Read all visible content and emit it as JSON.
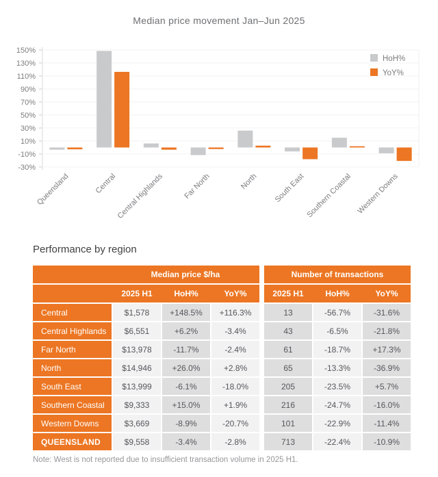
{
  "chart_data": {
    "type": "bar",
    "title": "Median price movement Jan–Jun 2025",
    "categories": [
      "Queensland",
      "Central",
      "Central Highlands",
      "Far North",
      "North",
      "South East",
      "Southern Coastal",
      "Western Downs"
    ],
    "series": [
      {
        "name": "HoH%",
        "color": "#C9CACC",
        "values": [
          -3.4,
          148.5,
          6.2,
          -11.7,
          26.0,
          -6.1,
          15.0,
          -8.9
        ]
      },
      {
        "name": "YoY%",
        "color": "#EC7623",
        "values": [
          -2.8,
          116.3,
          -3.4,
          -2.4,
          2.8,
          -18.0,
          1.9,
          -20.7
        ]
      }
    ],
    "xlabel": "",
    "ylabel": "",
    "ylim": [
      -30,
      150
    ],
    "ytick_step": 20,
    "ytick_suffix": "%",
    "grid": true,
    "legend_position": "top-right"
  },
  "table": {
    "heading": "Performance by region",
    "groups": [
      "Median price $/ha",
      "Number of transactions"
    ],
    "columns": [
      "2025 H1",
      "HoH%",
      "YoY%",
      "2025 H1",
      "HoH%",
      "YoY%"
    ],
    "rows": [
      {
        "region": "Central",
        "cells": [
          "$1,578",
          "+148.5%",
          "+116.3%",
          "13",
          "-56.7%",
          "-31.6%"
        ]
      },
      {
        "region": "Central Highlands",
        "cells": [
          "$6,551",
          "+6.2%",
          "-3.4%",
          "43",
          "-6.5%",
          "-21.8%"
        ]
      },
      {
        "region": "Far North",
        "cells": [
          "$13,978",
          "-11.7%",
          "-2.4%",
          "61",
          "-18.7%",
          "+17.3%"
        ]
      },
      {
        "region": "North",
        "cells": [
          "$14,946",
          "+26.0%",
          "+2.8%",
          "65",
          "-13.3%",
          "-36.9%"
        ]
      },
      {
        "region": "South East",
        "cells": [
          "$13,999",
          "-6.1%",
          "-18.0%",
          "205",
          "-23.5%",
          "+5.7%"
        ]
      },
      {
        "region": "Southern Coastal",
        "cells": [
          "$9,333",
          "+15.0%",
          "+1.9%",
          "216",
          "-24.7%",
          "-16.0%"
        ]
      },
      {
        "region": "Western Downs",
        "cells": [
          "$3,669",
          "-8.9%",
          "-20.7%",
          "101",
          "-22.9%",
          "-11.4%"
        ]
      },
      {
        "region": "QUEENSLAND",
        "cells": [
          "$9,558",
          "-3.4%",
          "-2.8%",
          "713",
          "-22.4%",
          "-10.9%"
        ]
      }
    ]
  },
  "note": "Note: West is not reported due to insufficient transaction volume in 2025 H1.",
  "colors": {
    "accent_orange": "#EC7623",
    "bar_gray": "#C9CACC",
    "cell_light": "#F2F2F3",
    "cell_mid": "#DEDEDF",
    "axis_text": "#7B7C7F",
    "zero_line": "#E3E3E5",
    "grid_line": "#F3F3F4"
  }
}
